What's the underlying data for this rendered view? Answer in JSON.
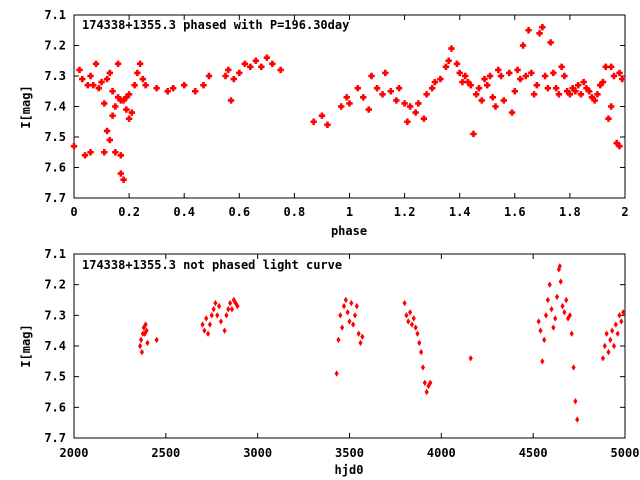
{
  "chart_data": [
    {
      "type": "scatter",
      "title": "174338+1355.3 phased with P=196.30day",
      "xlabel": "phase",
      "ylabel": "I[mag]",
      "xlim": [
        0,
        2
      ],
      "ylim": [
        7.7,
        7.1
      ],
      "y_inverted": true,
      "grid": false,
      "legend": "none",
      "xticks": [
        "0",
        "0.2",
        "0.4",
        "0.6",
        "0.8",
        "1",
        "1.2",
        "1.4",
        "1.6",
        "1.8",
        "2"
      ],
      "yticks": [
        "7.1",
        "7.2",
        "7.3",
        "7.4",
        "7.5",
        "7.6",
        "7.7"
      ],
      "marker_color": "#ff0000",
      "points": [
        [
          0.0,
          7.53
        ],
        [
          0.02,
          7.28
        ],
        [
          0.03,
          7.31
        ],
        [
          0.04,
          7.56
        ],
        [
          0.05,
          7.33
        ],
        [
          0.06,
          7.55
        ],
        [
          0.06,
          7.3
        ],
        [
          0.07,
          7.33
        ],
        [
          0.08,
          7.26
        ],
        [
          0.09,
          7.34
        ],
        [
          0.1,
          7.32
        ],
        [
          0.11,
          7.39
        ],
        [
          0.11,
          7.55
        ],
        [
          0.12,
          7.31
        ],
        [
          0.12,
          7.48
        ],
        [
          0.13,
          7.51
        ],
        [
          0.13,
          7.29
        ],
        [
          0.14,
          7.35
        ],
        [
          0.14,
          7.43
        ],
        [
          0.15,
          7.4
        ],
        [
          0.15,
          7.55
        ],
        [
          0.16,
          7.37
        ],
        [
          0.16,
          7.26
        ],
        [
          0.17,
          7.38
        ],
        [
          0.17,
          7.56
        ],
        [
          0.17,
          7.62
        ],
        [
          0.18,
          7.64
        ],
        [
          0.18,
          7.38
        ],
        [
          0.19,
          7.37
        ],
        [
          0.19,
          7.41
        ],
        [
          0.2,
          7.44
        ],
        [
          0.2,
          7.36
        ],
        [
          0.21,
          7.42
        ],
        [
          0.22,
          7.33
        ],
        [
          0.23,
          7.29
        ],
        [
          0.24,
          7.26
        ],
        [
          0.25,
          7.31
        ],
        [
          0.26,
          7.33
        ],
        [
          0.3,
          7.34
        ],
        [
          0.34,
          7.35
        ],
        [
          0.36,
          7.34
        ],
        [
          0.4,
          7.33
        ],
        [
          0.44,
          7.35
        ],
        [
          0.47,
          7.33
        ],
        [
          0.49,
          7.3
        ],
        [
          0.55,
          7.3
        ],
        [
          0.56,
          7.28
        ],
        [
          0.57,
          7.38
        ],
        [
          0.58,
          7.31
        ],
        [
          0.6,
          7.29
        ],
        [
          0.62,
          7.26
        ],
        [
          0.64,
          7.27
        ],
        [
          0.66,
          7.25
        ],
        [
          0.68,
          7.27
        ],
        [
          0.7,
          7.24
        ],
        [
          0.72,
          7.26
        ],
        [
          0.75,
          7.28
        ],
        [
          0.87,
          7.45
        ],
        [
          0.9,
          7.43
        ],
        [
          0.92,
          7.46
        ],
        [
          0.97,
          7.4
        ],
        [
          0.99,
          7.37
        ],
        [
          1.0,
          7.39
        ],
        [
          1.03,
          7.34
        ],
        [
          1.05,
          7.37
        ],
        [
          1.07,
          7.41
        ],
        [
          1.08,
          7.3
        ],
        [
          1.1,
          7.34
        ],
        [
          1.12,
          7.36
        ],
        [
          1.13,
          7.29
        ],
        [
          1.15,
          7.35
        ],
        [
          1.17,
          7.38
        ],
        [
          1.18,
          7.34
        ],
        [
          1.2,
          7.39
        ],
        [
          1.21,
          7.45
        ],
        [
          1.22,
          7.4
        ],
        [
          1.24,
          7.42
        ],
        [
          1.25,
          7.39
        ],
        [
          1.27,
          7.44
        ],
        [
          1.28,
          7.36
        ],
        [
          1.3,
          7.34
        ],
        [
          1.31,
          7.32
        ],
        [
          1.33,
          7.31
        ],
        [
          1.35,
          7.27
        ],
        [
          1.36,
          7.25
        ],
        [
          1.37,
          7.21
        ],
        [
          1.39,
          7.26
        ],
        [
          1.4,
          7.29
        ],
        [
          1.41,
          7.32
        ],
        [
          1.42,
          7.3
        ],
        [
          1.43,
          7.32
        ],
        [
          1.44,
          7.33
        ],
        [
          1.45,
          7.49
        ],
        [
          1.46,
          7.36
        ],
        [
          1.47,
          7.34
        ],
        [
          1.48,
          7.38
        ],
        [
          1.49,
          7.31
        ],
        [
          1.5,
          7.33
        ],
        [
          1.51,
          7.3
        ],
        [
          1.52,
          7.37
        ],
        [
          1.53,
          7.4
        ],
        [
          1.54,
          7.28
        ],
        [
          1.55,
          7.3
        ],
        [
          1.56,
          7.38
        ],
        [
          1.58,
          7.29
        ],
        [
          1.59,
          7.42
        ],
        [
          1.6,
          7.35
        ],
        [
          1.61,
          7.28
        ],
        [
          1.62,
          7.31
        ],
        [
          1.63,
          7.2
        ],
        [
          1.64,
          7.3
        ],
        [
          1.65,
          7.15
        ],
        [
          1.66,
          7.29
        ],
        [
          1.67,
          7.36
        ],
        [
          1.68,
          7.33
        ],
        [
          1.69,
          7.16
        ],
        [
          1.7,
          7.14
        ],
        [
          1.71,
          7.3
        ],
        [
          1.72,
          7.34
        ],
        [
          1.73,
          7.19
        ],
        [
          1.74,
          7.29
        ],
        [
          1.75,
          7.34
        ],
        [
          1.76,
          7.36
        ],
        [
          1.77,
          7.27
        ],
        [
          1.78,
          7.3
        ],
        [
          1.79,
          7.35
        ],
        [
          1.8,
          7.36
        ],
        [
          1.81,
          7.34
        ],
        [
          1.82,
          7.35
        ],
        [
          1.83,
          7.33
        ],
        [
          1.84,
          7.36
        ],
        [
          1.85,
          7.32
        ],
        [
          1.86,
          7.34
        ],
        [
          1.87,
          7.35
        ],
        [
          1.88,
          7.37
        ],
        [
          1.89,
          7.38
        ],
        [
          1.9,
          7.36
        ],
        [
          1.91,
          7.33
        ],
        [
          1.92,
          7.32
        ],
        [
          1.93,
          7.27
        ],
        [
          1.94,
          7.44
        ],
        [
          1.95,
          7.27
        ],
        [
          1.96,
          7.3
        ],
        [
          1.97,
          7.52
        ],
        [
          1.98,
          7.29
        ],
        [
          1.99,
          7.31
        ],
        [
          1.98,
          7.53
        ],
        [
          1.95,
          7.4
        ]
      ]
    },
    {
      "type": "scatter",
      "title": "174338+1355.3 not phased light curve",
      "xlabel": "hjd0",
      "ylabel": "I[mag]",
      "xlim": [
        2000,
        5000
      ],
      "ylim": [
        7.7,
        7.1
      ],
      "y_inverted": true,
      "grid": false,
      "legend": "none",
      "xticks": [
        "2000",
        "2500",
        "3000",
        "3500",
        "4000",
        "4500",
        "5000"
      ],
      "yticks": [
        "7.1",
        "7.2",
        "7.3",
        "7.4",
        "7.5",
        "7.6",
        "7.7"
      ],
      "marker_color": "#ff0000",
      "points": [
        [
          2360,
          7.4
        ],
        [
          2365,
          7.38
        ],
        [
          2370,
          7.42
        ],
        [
          2375,
          7.36
        ],
        [
          2380,
          7.34
        ],
        [
          2385,
          7.36
        ],
        [
          2390,
          7.33
        ],
        [
          2395,
          7.35
        ],
        [
          2400,
          7.39
        ],
        [
          2450,
          7.38
        ],
        [
          2700,
          7.33
        ],
        [
          2710,
          7.35
        ],
        [
          2720,
          7.31
        ],
        [
          2730,
          7.36
        ],
        [
          2740,
          7.33
        ],
        [
          2750,
          7.3
        ],
        [
          2760,
          7.28
        ],
        [
          2770,
          7.26
        ],
        [
          2780,
          7.3
        ],
        [
          2790,
          7.27
        ],
        [
          2800,
          7.32
        ],
        [
          2820,
          7.35
        ],
        [
          2830,
          7.3
        ],
        [
          2840,
          7.28
        ],
        [
          2850,
          7.26
        ],
        [
          2860,
          7.28
        ],
        [
          2870,
          7.25
        ],
        [
          2880,
          7.26
        ],
        [
          2890,
          7.27
        ],
        [
          3430,
          7.49
        ],
        [
          3440,
          7.38
        ],
        [
          3450,
          7.3
        ],
        [
          3460,
          7.34
        ],
        [
          3470,
          7.27
        ],
        [
          3480,
          7.25
        ],
        [
          3490,
          7.29
        ],
        [
          3500,
          7.32
        ],
        [
          3510,
          7.26
        ],
        [
          3520,
          7.33
        ],
        [
          3530,
          7.3
        ],
        [
          3540,
          7.27
        ],
        [
          3550,
          7.36
        ],
        [
          3560,
          7.39
        ],
        [
          3570,
          7.37
        ],
        [
          3800,
          7.26
        ],
        [
          3810,
          7.3
        ],
        [
          3820,
          7.32
        ],
        [
          3830,
          7.29
        ],
        [
          3840,
          7.33
        ],
        [
          3850,
          7.31
        ],
        [
          3860,
          7.34
        ],
        [
          3870,
          7.36
        ],
        [
          3880,
          7.39
        ],
        [
          3890,
          7.42
        ],
        [
          3900,
          7.47
        ],
        [
          3910,
          7.52
        ],
        [
          3920,
          7.55
        ],
        [
          3930,
          7.53
        ],
        [
          3940,
          7.52
        ],
        [
          4160,
          7.44
        ],
        [
          4530,
          7.32
        ],
        [
          4540,
          7.35
        ],
        [
          4550,
          7.45
        ],
        [
          4560,
          7.38
        ],
        [
          4570,
          7.3
        ],
        [
          4580,
          7.25
        ],
        [
          4590,
          7.2
        ],
        [
          4600,
          7.28
        ],
        [
          4610,
          7.34
        ],
        [
          4620,
          7.31
        ],
        [
          4630,
          7.24
        ],
        [
          4640,
          7.15
        ],
        [
          4645,
          7.14
        ],
        [
          4650,
          7.19
        ],
        [
          4660,
          7.27
        ],
        [
          4670,
          7.29
        ],
        [
          4680,
          7.25
        ],
        [
          4690,
          7.31
        ],
        [
          4700,
          7.3
        ],
        [
          4710,
          7.36
        ],
        [
          4720,
          7.47
        ],
        [
          4730,
          7.58
        ],
        [
          4740,
          7.64
        ],
        [
          4880,
          7.44
        ],
        [
          4890,
          7.4
        ],
        [
          4900,
          7.36
        ],
        [
          4910,
          7.42
        ],
        [
          4920,
          7.38
        ],
        [
          4930,
          7.35
        ],
        [
          4940,
          7.4
        ],
        [
          4950,
          7.33
        ],
        [
          4960,
          7.36
        ],
        [
          4970,
          7.3
        ],
        [
          4980,
          7.32
        ],
        [
          4990,
          7.29
        ]
      ]
    }
  ]
}
